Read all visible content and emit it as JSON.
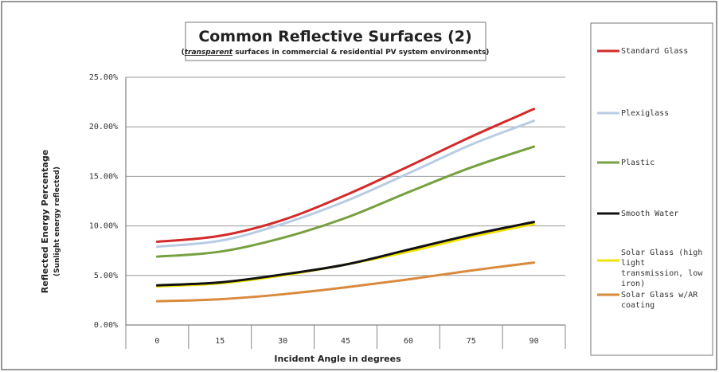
{
  "chart_data": {
    "type": "line",
    "title": "Common Reflective Surfaces (2)",
    "subtitle_emphasis": "transparent",
    "subtitle_rest": " surfaces in commercial & residential PV system environments)",
    "subtitle_open": "(",
    "xlabel": "Incident Angle in degrees",
    "ylabel": "Reflected Energy Percentage",
    "ylabel_sub": "(Sunlight energy reflected)",
    "x": [
      0,
      15,
      30,
      45,
      60,
      75,
      90
    ],
    "x_tick_labels": [
      "0",
      "15",
      "30",
      "45",
      "60",
      "75",
      "90"
    ],
    "ylim": [
      0,
      25
    ],
    "y_ticks": [
      0,
      5,
      10,
      15,
      20,
      25
    ],
    "y_tick_labels": [
      "0.00%",
      "5.00%",
      "10.00%",
      "15.00%",
      "20.00%",
      "25.00%"
    ],
    "grid": "horizontal",
    "legend_placement": "right",
    "series": [
      {
        "name": "Standard Glass",
        "color": "#d42a2a",
        "values": [
          8.4,
          9.0,
          10.6,
          13.1,
          16.0,
          19.0,
          21.8
        ]
      },
      {
        "name": "Plexiglass",
        "color": "#b8cce4",
        "values": [
          7.9,
          8.5,
          10.2,
          12.5,
          15.3,
          18.2,
          20.6
        ]
      },
      {
        "name": "Plastic",
        "color": "#77a040",
        "values": [
          6.9,
          7.4,
          8.8,
          10.8,
          13.4,
          15.9,
          18.0
        ]
      },
      {
        "name": "Smooth Water",
        "color": "#111111",
        "values": [
          4.0,
          4.3,
          5.1,
          6.1,
          7.6,
          9.1,
          10.4
        ]
      },
      {
        "name": "Solar Glass (high light transmission, low iron)",
        "color": "#f2e200",
        "values": [
          3.9,
          4.2,
          5.0,
          6.1,
          7.4,
          8.9,
          10.2
        ]
      },
      {
        "name": "Solar Glass w/AR coating",
        "color": "#d98a3c",
        "values": [
          2.4,
          2.6,
          3.1,
          3.8,
          4.6,
          5.5,
          6.3
        ]
      }
    ]
  }
}
